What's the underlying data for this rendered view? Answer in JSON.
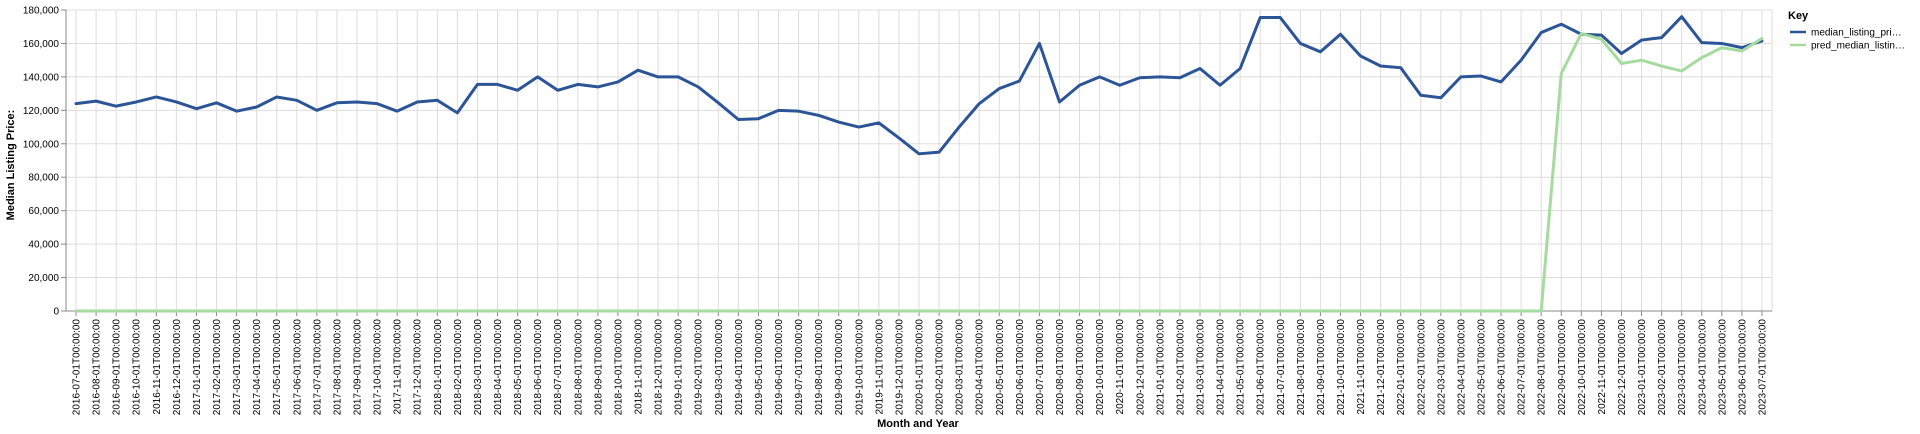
{
  "chart_data": {
    "type": "line",
    "xlabel": "Month and Year",
    "ylabel": "Median Listing Price:",
    "ylim": [
      0,
      180000
    ],
    "yticks": [
      "0",
      "20,000",
      "40,000",
      "60,000",
      "80,000",
      "100,000",
      "120,000",
      "140,000",
      "160,000",
      "180,000"
    ],
    "grid": true,
    "legend": {
      "title": "Key",
      "placement": "right"
    },
    "categories": [
      "2016-07-01T00:00:00",
      "2016-08-01T00:00:00",
      "2016-09-01T00:00:00",
      "2016-10-01T00:00:00",
      "2016-11-01T00:00:00",
      "2016-12-01T00:00:00",
      "2017-01-01T00:00:00",
      "2017-02-01T00:00:00",
      "2017-03-01T00:00:00",
      "2017-04-01T00:00:00",
      "2017-05-01T00:00:00",
      "2017-06-01T00:00:00",
      "2017-07-01T00:00:00",
      "2017-08-01T00:00:00",
      "2017-09-01T00:00:00",
      "2017-10-01T00:00:00",
      "2017-11-01T00:00:00",
      "2017-12-01T00:00:00",
      "2018-01-01T00:00:00",
      "2018-02-01T00:00:00",
      "2018-03-01T00:00:00",
      "2018-04-01T00:00:00",
      "2018-05-01T00:00:00",
      "2018-06-01T00:00:00",
      "2018-07-01T00:00:00",
      "2018-08-01T00:00:00",
      "2018-09-01T00:00:00",
      "2018-10-01T00:00:00",
      "2018-11-01T00:00:00",
      "2018-12-01T00:00:00",
      "2019-01-01T00:00:00",
      "2019-02-01T00:00:00",
      "2019-03-01T00:00:00",
      "2019-04-01T00:00:00",
      "2019-05-01T00:00:00",
      "2019-06-01T00:00:00",
      "2019-07-01T00:00:00",
      "2019-08-01T00:00:00",
      "2019-09-01T00:00:00",
      "2019-10-01T00:00:00",
      "2019-11-01T00:00:00",
      "2019-12-01T00:00:00",
      "2020-01-01T00:00:00",
      "2020-02-01T00:00:00",
      "2020-03-01T00:00:00",
      "2020-04-01T00:00:00",
      "2020-05-01T00:00:00",
      "2020-06-01T00:00:00",
      "2020-07-01T00:00:00",
      "2020-08-01T00:00:00",
      "2020-09-01T00:00:00",
      "2020-10-01T00:00:00",
      "2020-11-01T00:00:00",
      "2020-12-01T00:00:00",
      "2021-01-01T00:00:00",
      "2021-02-01T00:00:00",
      "2021-03-01T00:00:00",
      "2021-04-01T00:00:00",
      "2021-05-01T00:00:00",
      "2021-06-01T00:00:00",
      "2021-07-01T00:00:00",
      "2021-08-01T00:00:00",
      "2021-09-01T00:00:00",
      "2021-10-01T00:00:00",
      "2021-11-01T00:00:00",
      "2021-12-01T00:00:00",
      "2022-01-01T00:00:00",
      "2022-02-01T00:00:00",
      "2022-03-01T00:00:00",
      "2022-04-01T00:00:00",
      "2022-05-01T00:00:00",
      "2022-06-01T00:00:00",
      "2022-07-01T00:00:00",
      "2022-08-01T00:00:00",
      "2022-09-01T00:00:00",
      "2022-10-01T00:00:00",
      "2022-11-01T00:00:00",
      "2022-12-01T00:00:00",
      "2023-01-01T00:00:00",
      "2023-02-01T00:00:00",
      "2023-03-01T00:00:00",
      "2023-04-01T00:00:00",
      "2023-05-01T00:00:00",
      "2023-06-01T00:00:00",
      "2023-07-01T00:00:00"
    ],
    "series": [
      {
        "name": "median_listing_pri…",
        "color": "#2c5597",
        "values": [
          124000,
          125500,
          122500,
          125000,
          128000,
          125000,
          121000,
          124500,
          119500,
          122000,
          128000,
          126000,
          120000,
          124500,
          125000,
          124000,
          119500,
          125000,
          126000,
          118500,
          135500,
          135500,
          132000,
          140000,
          132000,
          135500,
          134000,
          137000,
          144000,
          140000,
          140000,
          134000,
          124500,
          114500,
          115000,
          120000,
          119500,
          117000,
          113000,
          110000,
          112500,
          103500,
          94000,
          95000,
          110000,
          124000,
          133000,
          137500,
          160000,
          125000,
          135000,
          140000,
          135000,
          139500,
          140000,
          139500,
          145000,
          135000,
          145000,
          175500,
          175500,
          160000,
          155000,
          165500,
          152500,
          146500,
          145500,
          129000,
          127500,
          140000,
          140500,
          137000,
          150000,
          166500,
          171500,
          165500,
          165000,
          154000,
          162000,
          163500,
          176000,
          160500,
          160000,
          157500,
          161500
        ]
      },
      {
        "name": "pred_median_listin…",
        "color": "#a6dba0",
        "values": [
          0,
          0,
          0,
          0,
          0,
          0,
          0,
          0,
          0,
          0,
          0,
          0,
          0,
          0,
          0,
          0,
          0,
          0,
          0,
          0,
          0,
          0,
          0,
          0,
          0,
          0,
          0,
          0,
          0,
          0,
          0,
          0,
          0,
          0,
          0,
          0,
          0,
          0,
          0,
          0,
          0,
          0,
          0,
          0,
          0,
          0,
          0,
          0,
          0,
          0,
          0,
          0,
          0,
          0,
          0,
          0,
          0,
          0,
          0,
          0,
          0,
          0,
          0,
          0,
          0,
          0,
          0,
          0,
          0,
          0,
          0,
          0,
          0,
          0,
          142000,
          166000,
          162500,
          148000,
          150000,
          146500,
          143500,
          151500,
          157500,
          155500,
          163000
        ]
      }
    ]
  }
}
